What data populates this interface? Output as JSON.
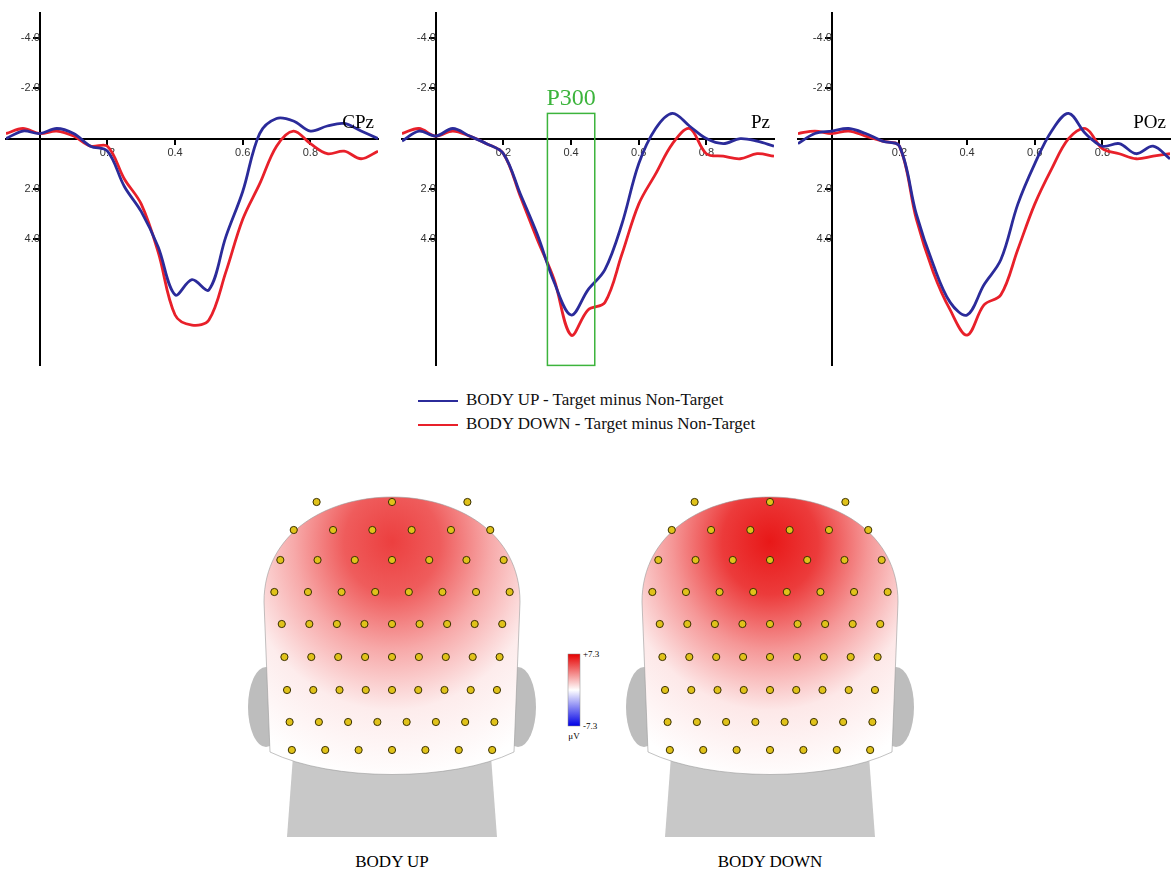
{
  "chart_data": [
    {
      "type": "line",
      "title": "CPz",
      "x": [
        -0.1,
        -0.05,
        0,
        0.05,
        0.1,
        0.15,
        0.2,
        0.25,
        0.3,
        0.35,
        0.4,
        0.45,
        0.5,
        0.55,
        0.6,
        0.65,
        0.7,
        0.75,
        0.8,
        0.85,
        0.9,
        0.95,
        1.0
      ],
      "series": [
        {
          "name": "BODY UP - Target minus Non-Target",
          "color": "#2b2b9a",
          "values": [
            0,
            -0.3,
            -0.2,
            -0.4,
            -0.2,
            0.3,
            0.5,
            1.9,
            2.9,
            4.3,
            6.2,
            5.6,
            6.0,
            3.9,
            2.1,
            -0.2,
            -0.8,
            -0.7,
            -0.3,
            -0.5,
            -0.6,
            -0.3,
            0
          ]
        },
        {
          "name": "BODY DOWN - Target minus Non-Target",
          "color": "#e8202a",
          "values": [
            -0.2,
            -0.4,
            -0.2,
            -0.3,
            -0.1,
            0.3,
            0.3,
            1.6,
            2.6,
            4.5,
            7.0,
            7.4,
            7.2,
            5.3,
            3.2,
            1.8,
            0.3,
            -0.3,
            0.2,
            0.6,
            0.5,
            0.8,
            0.5
          ]
        }
      ],
      "xlim": [
        -0.1,
        1.0
      ],
      "ylim": [
        9,
        -5
      ],
      "xticks": [
        0.2,
        0.4,
        0.6,
        0.8
      ],
      "yticks": [
        {
          "value": -4,
          "label": "-4.0"
        },
        {
          "value": -2,
          "label": "-2.0"
        },
        {
          "value": 2,
          "label": "2.0"
        },
        {
          "value": 4,
          "label": "4.0"
        }
      ],
      "grid": false,
      "legend": "bottom"
    },
    {
      "type": "line",
      "title": "Pz",
      "x": [
        -0.1,
        -0.05,
        0,
        0.05,
        0.1,
        0.15,
        0.2,
        0.25,
        0.3,
        0.35,
        0.4,
        0.45,
        0.5,
        0.55,
        0.6,
        0.65,
        0.7,
        0.75,
        0.8,
        0.85,
        0.9,
        0.95,
        1.0
      ],
      "series": [
        {
          "name": "BODY UP - Target minus Non-Target",
          "color": "#2b2b9a",
          "values": [
            0.1,
            -0.3,
            -0.1,
            -0.4,
            -0.1,
            0.2,
            0.6,
            2.2,
            3.8,
            5.7,
            7.0,
            6.0,
            5.2,
            3.4,
            1.0,
            -0.4,
            -1.0,
            -0.5,
            0,
            0.2,
            0,
            0.1,
            0.3
          ]
        },
        {
          "name": "BODY DOWN - Target minus Non-Target",
          "color": "#e8202a",
          "values": [
            -0.2,
            -0.4,
            -0.1,
            -0.3,
            -0.1,
            0.2,
            0.6,
            2.3,
            4.0,
            5.6,
            7.8,
            6.8,
            6.5,
            4.6,
            2.6,
            1.4,
            0.2,
            -0.4,
            0.6,
            0.7,
            0.8,
            0.6,
            0.7
          ]
        }
      ],
      "xlim": [
        -0.1,
        1.0
      ],
      "ylim": [
        9,
        -5
      ],
      "xticks": [
        0.2,
        0.4,
        0.6,
        0.8
      ],
      "yticks": [
        {
          "value": -4,
          "label": "-4.0"
        },
        {
          "value": -2,
          "label": "-2.0"
        },
        {
          "value": 2,
          "label": "2.0"
        },
        {
          "value": 4,
          "label": "4.0"
        }
      ],
      "annotations": [
        {
          "text": "P300",
          "x": [
            0.33,
            0.47
          ],
          "y": [
            -1,
            9
          ],
          "color": "#3cb43c"
        }
      ],
      "grid": false,
      "legend": "bottom"
    },
    {
      "type": "line",
      "title": "POz",
      "x": [
        -0.1,
        -0.05,
        0,
        0.05,
        0.1,
        0.15,
        0.2,
        0.25,
        0.3,
        0.35,
        0.4,
        0.45,
        0.5,
        0.55,
        0.6,
        0.65,
        0.7,
        0.75,
        0.8,
        0.85,
        0.9,
        0.95,
        1.0
      ],
      "series": [
        {
          "name": "BODY UP - Target minus Non-Target",
          "color": "#2b2b9a",
          "values": [
            0.2,
            -0.2,
            -0.3,
            -0.4,
            -0.2,
            0.1,
            0.3,
            3.0,
            5.0,
            6.5,
            7.0,
            5.8,
            4.8,
            2.6,
            1.0,
            -0.3,
            -1.0,
            -0.2,
            0.3,
            0.2,
            0.6,
            0.3,
            0.8
          ]
        },
        {
          "name": "BODY DOWN - Target minus Non-Target",
          "color": "#e8202a",
          "values": [
            -0.2,
            -0.3,
            -0.2,
            -0.3,
            -0.1,
            0.1,
            0.3,
            3.2,
            5.3,
            6.8,
            7.8,
            6.6,
            6.2,
            4.4,
            2.6,
            1.2,
            0,
            -0.4,
            0.4,
            0.6,
            0.8,
            0.7,
            0.6
          ]
        }
      ],
      "xlim": [
        -0.1,
        1.0
      ],
      "ylim": [
        9,
        -5
      ],
      "xticks": [
        0.2,
        0.4,
        0.6,
        0.8
      ],
      "yticks": [
        {
          "value": -4,
          "label": "-4.0"
        },
        {
          "value": -2,
          "label": "-2.0"
        },
        {
          "value": 2,
          "label": "2.0"
        },
        {
          "value": 4,
          "label": "4.0"
        }
      ],
      "grid": false,
      "legend": "bottom"
    }
  ],
  "topomaps": [
    {
      "label": "BODY UP",
      "peak": 5.5
    },
    {
      "label": "BODY DOWN",
      "peak": 6.6
    }
  ],
  "colorbar": {
    "range": [
      -7.3,
      7.3
    ],
    "ticks": [
      {
        "value": 7.3,
        "label": "+7.3"
      },
      -7.3
    ],
    "unit": "μV"
  }
}
